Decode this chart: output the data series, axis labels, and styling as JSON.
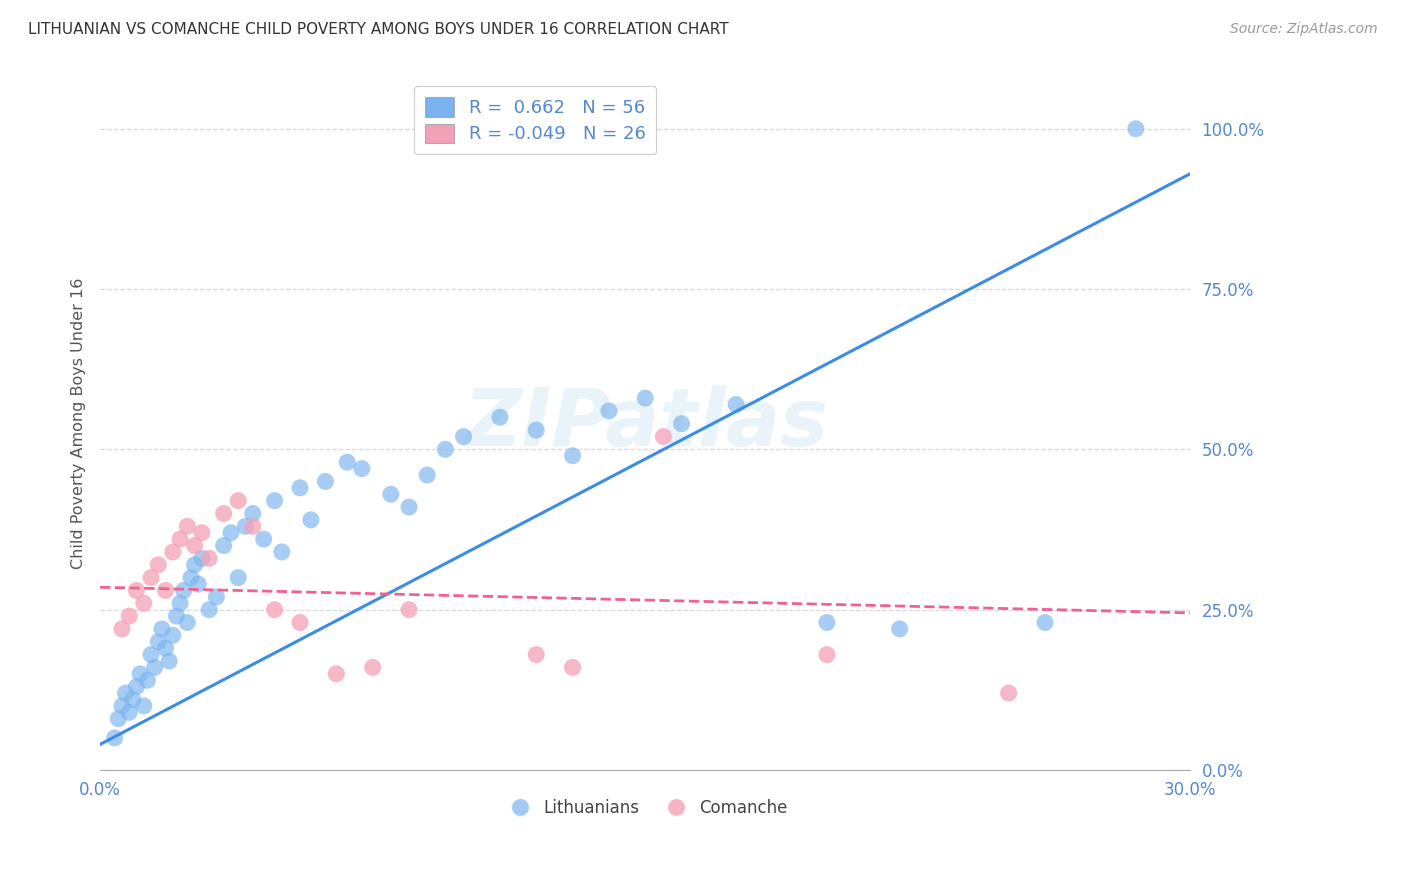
{
  "title": "LITHUANIAN VS COMANCHE CHILD POVERTY AMONG BOYS UNDER 16 CORRELATION CHART",
  "source": "Source: ZipAtlas.com",
  "ylabel": "Child Poverty Among Boys Under 16",
  "xlim": [
    0.0,
    0.3
  ],
  "ylim": [
    0.0,
    1.08
  ],
  "yticks": [
    0.0,
    0.25,
    0.5,
    0.75,
    1.0
  ],
  "ytick_labels": [
    "0.0%",
    "25.0%",
    "50.0%",
    "75.0%",
    "100.0%"
  ],
  "xticks": [
    0.0,
    0.05,
    0.1,
    0.15,
    0.2,
    0.25,
    0.3
  ],
  "xtick_labels": [
    "0.0%",
    "",
    "",
    "",
    "",
    "",
    "30.0%"
  ],
  "blue_color": "#7ab3ef",
  "pink_color": "#f4a0b5",
  "blue_line_color": "#3a8ce4",
  "pink_line_color": "#f06090",
  "grid_color": "#d0d0d0",
  "axis_label_color": "#5588cc",
  "title_color": "#333333",
  "watermark": "ZIPatlas",
  "legend_R_blue": "0.662",
  "legend_N_blue": "56",
  "legend_R_pink": "-0.049",
  "legend_N_pink": "26",
  "blue_scatter_x": [
    0.004,
    0.005,
    0.006,
    0.007,
    0.008,
    0.009,
    0.01,
    0.011,
    0.012,
    0.013,
    0.014,
    0.015,
    0.016,
    0.017,
    0.018,
    0.019,
    0.02,
    0.021,
    0.022,
    0.023,
    0.024,
    0.025,
    0.026,
    0.027,
    0.028,
    0.03,
    0.032,
    0.034,
    0.036,
    0.038,
    0.04,
    0.042,
    0.045,
    0.048,
    0.05,
    0.055,
    0.058,
    0.062,
    0.068,
    0.072,
    0.08,
    0.085,
    0.09,
    0.095,
    0.1,
    0.11,
    0.12,
    0.13,
    0.14,
    0.15,
    0.16,
    0.175,
    0.2,
    0.22,
    0.26,
    0.285
  ],
  "blue_scatter_y": [
    0.05,
    0.08,
    0.1,
    0.12,
    0.09,
    0.11,
    0.13,
    0.15,
    0.1,
    0.14,
    0.18,
    0.16,
    0.2,
    0.22,
    0.19,
    0.17,
    0.21,
    0.24,
    0.26,
    0.28,
    0.23,
    0.3,
    0.32,
    0.29,
    0.33,
    0.25,
    0.27,
    0.35,
    0.37,
    0.3,
    0.38,
    0.4,
    0.36,
    0.42,
    0.34,
    0.44,
    0.39,
    0.45,
    0.48,
    0.47,
    0.43,
    0.41,
    0.46,
    0.5,
    0.52,
    0.55,
    0.53,
    0.49,
    0.56,
    0.58,
    0.54,
    0.57,
    0.23,
    0.22,
    0.23,
    1.0
  ],
  "pink_scatter_x": [
    0.006,
    0.008,
    0.01,
    0.012,
    0.014,
    0.016,
    0.018,
    0.02,
    0.022,
    0.024,
    0.026,
    0.028,
    0.03,
    0.034,
    0.038,
    0.042,
    0.048,
    0.055,
    0.065,
    0.075,
    0.085,
    0.12,
    0.13,
    0.155,
    0.2,
    0.25
  ],
  "pink_scatter_y": [
    0.22,
    0.24,
    0.28,
    0.26,
    0.3,
    0.32,
    0.28,
    0.34,
    0.36,
    0.38,
    0.35,
    0.37,
    0.33,
    0.4,
    0.42,
    0.38,
    0.25,
    0.23,
    0.15,
    0.16,
    0.25,
    0.18,
    0.16,
    0.52,
    0.18,
    0.12
  ],
  "blue_trend_x": [
    0.0,
    0.3
  ],
  "blue_trend_y": [
    0.04,
    0.93
  ],
  "pink_trend_x": [
    0.0,
    0.3
  ],
  "pink_trend_y": [
    0.285,
    0.245
  ]
}
